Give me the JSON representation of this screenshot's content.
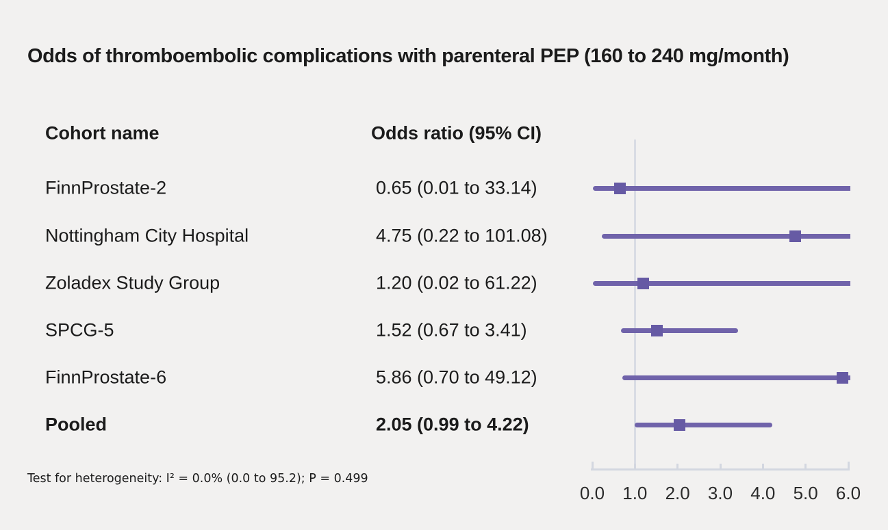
{
  "figure": {
    "title": "Odds of thromboembolic complications with parenteral PEP (160 to 240 mg/month)",
    "column_headers": {
      "cohort": "Cohort name",
      "odds_ratio": "Odds ratio (95% CI)"
    },
    "footnote": "Test for heterogeneity: I² = 0.0% (0.0 to 95.2); P = 0.499"
  },
  "colors": {
    "background": "#f2f1f0",
    "text": "#1b1b1b",
    "ci_line": "#7063aa",
    "marker": "#665aa4",
    "axis": "#d3d7e0",
    "reference_line": "#d9dce4"
  },
  "chart_data": {
    "type": "forest",
    "title": "Odds of thromboembolic complications with parenteral PEP (160 to 240 mg/month)",
    "xlabel": "",
    "ylabel": "",
    "x_axis": {
      "tick_labels": [
        "0.0",
        "1.0",
        "2.0",
        "3.0",
        "4.0",
        "5.0",
        "6.0"
      ],
      "tick_values": [
        0,
        1,
        2,
        3,
        4,
        5,
        6
      ],
      "range": [
        0,
        6
      ]
    },
    "reference_line_x": 1.0,
    "rows": [
      {
        "cohort": "FinnProstate-2",
        "display": "0.65 (0.01 to 33.14)",
        "or": 0.65,
        "ci_low": 0.01,
        "ci_high": 33.14,
        "bold": false
      },
      {
        "cohort": "Nottingham City Hospital",
        "display": "4.75 (0.22 to 101.08)",
        "or": 4.75,
        "ci_low": 0.22,
        "ci_high": 101.08,
        "bold": false
      },
      {
        "cohort": "Zoladex Study Group",
        "display": "1.20 (0.02 to 61.22)",
        "or": 1.2,
        "ci_low": 0.02,
        "ci_high": 61.22,
        "bold": false
      },
      {
        "cohort": "SPCG-5",
        "display": "1.52 (0.67 to 3.41)",
        "or": 1.52,
        "ci_low": 0.67,
        "ci_high": 3.41,
        "bold": false
      },
      {
        "cohort": "FinnProstate-6",
        "display": "5.86 (0.70 to 49.12)",
        "or": 5.86,
        "ci_low": 0.7,
        "ci_high": 49.12,
        "bold": false
      },
      {
        "cohort": "Pooled",
        "display": "2.05 (0.99 to 4.22)",
        "or": 2.05,
        "ci_low": 0.99,
        "ci_high": 4.22,
        "bold": true
      }
    ],
    "annotation": "Test for heterogeneity: I² = 0.0% (0.0 to 95.2); P = 0.499",
    "grid": false,
    "legend": "none",
    "marker_shape": "square"
  }
}
